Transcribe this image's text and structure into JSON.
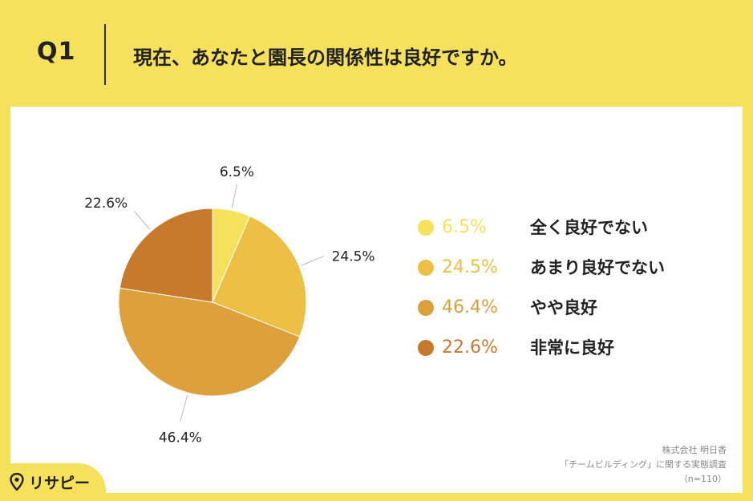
{
  "header": {
    "q_label": "Q1",
    "question": "現在、あなたと園長の関係性は良好ですか。"
  },
  "chart_data": {
    "type": "pie",
    "categories": [
      "全く良好でない",
      "あまり良好でない",
      "やや良好",
      "非常に良好"
    ],
    "values": [
      6.5,
      24.5,
      46.4,
      22.6
    ],
    "value_labels": [
      "6.5%",
      "24.5%",
      "46.4%",
      "22.6%"
    ],
    "colors": [
      "#F6E15C",
      "#EDBF45",
      "#DDA03A",
      "#C77A2C"
    ],
    "legend_position": "right"
  },
  "legend": {
    "items": [
      {
        "pct": "6.5%",
        "label": "全く良好でない",
        "color": "#F6E15C"
      },
      {
        "pct": "24.5%",
        "label": "あまり良好でない",
        "color": "#EDBF45"
      },
      {
        "pct": "46.4%",
        "label": "やや良好",
        "color": "#DDA03A"
      },
      {
        "pct": "22.6%",
        "label": "非常に良好",
        "color": "#C77A2C"
      }
    ]
  },
  "source": {
    "line1": "株式会社 明日香",
    "line2": "「チームビルディング」に関する実態調査",
    "line3": "（n=110）"
  },
  "logo": {
    "text": "リサピー"
  }
}
